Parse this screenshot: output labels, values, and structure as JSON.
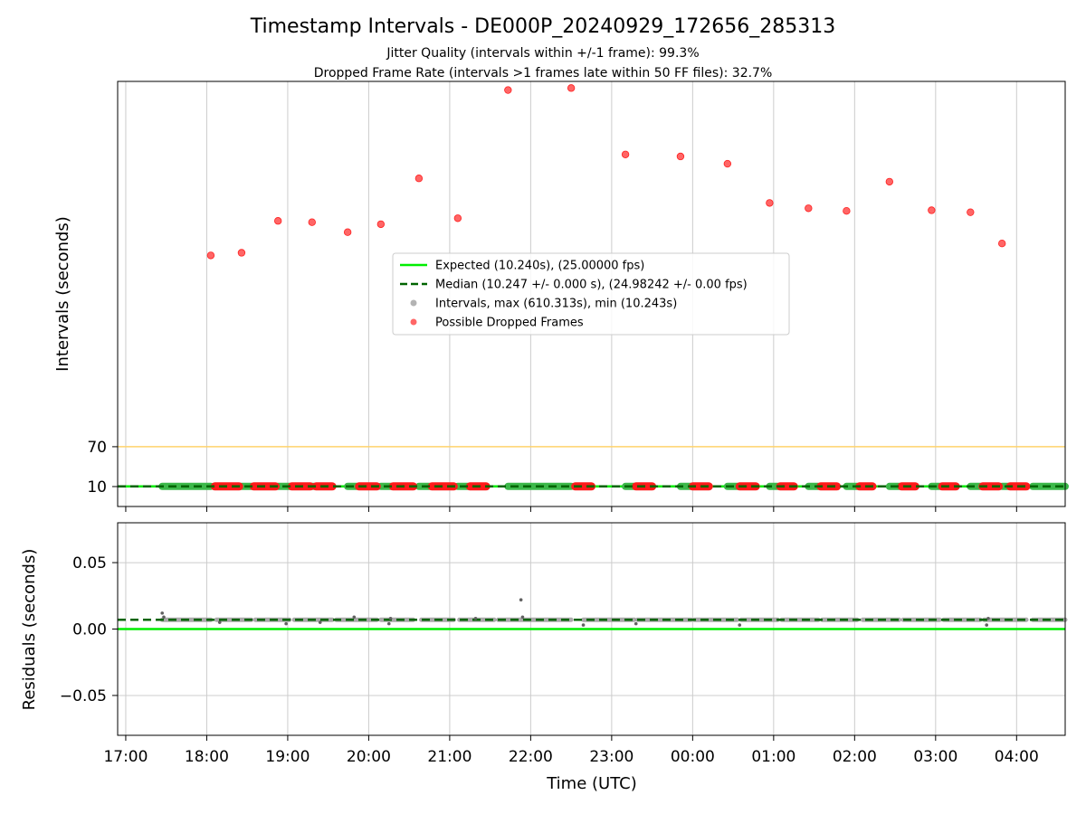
{
  "chart_data": {
    "type": "scatter",
    "title": "Timestamp Intervals - DE000P_20240929_172656_285313",
    "subtitle_lines": [
      "Jitter Quality (intervals within +/-1 frame): 99.3%",
      "Dropped Frame Rate (intervals >1 frames late within 50 FF files): 32.7%"
    ],
    "xlabel": "Time (UTC)",
    "x_ticks": [
      "17:00",
      "18:00",
      "19:00",
      "20:00",
      "21:00",
      "22:00",
      "23:00",
      "00:00",
      "01:00",
      "02:00",
      "03:00",
      "04:00"
    ],
    "x_range_hours": [
      -0.1,
      11.6
    ],
    "legend_position": "center",
    "grid": true,
    "colors": {
      "expected": "#00ee00",
      "median": "#006400",
      "intervals": "#808080",
      "dropped": "#ff0000",
      "threshold": "#ffd36b",
      "grid": "#cccccc"
    },
    "top": {
      "ylabel": "Intervals (seconds)",
      "y_ticks": [
        10,
        70
      ],
      "ylim": [
        -20,
        620
      ],
      "threshold_line": 70,
      "expected_value": 10.24,
      "median_value": 10.247,
      "legend": [
        {
          "kind": "line",
          "label": "Expected (10.240s), (25.00000 fps)"
        },
        {
          "kind": "dashed",
          "label": "Median (10.247 +/- 0.000 s), (24.98242 +/- 0.00 fps)"
        },
        {
          "kind": "dot-gray",
          "label": "Intervals, max (610.313s), min (10.243s)"
        },
        {
          "kind": "dot-red",
          "label": "Possible Dropped Frames"
        }
      ],
      "dropped_outliers": [
        {
          "t": 1.05,
          "v": 358
        },
        {
          "t": 1.43,
          "v": 362
        },
        {
          "t": 1.88,
          "v": 410
        },
        {
          "t": 2.3,
          "v": 408
        },
        {
          "t": 2.74,
          "v": 393
        },
        {
          "t": 3.15,
          "v": 405
        },
        {
          "t": 3.62,
          "v": 474
        },
        {
          "t": 4.1,
          "v": 414
        },
        {
          "t": 4.72,
          "v": 607
        },
        {
          "t": 5.5,
          "v": 610
        },
        {
          "t": 6.17,
          "v": 510
        },
        {
          "t": 6.85,
          "v": 507
        },
        {
          "t": 7.43,
          "v": 496
        },
        {
          "t": 7.95,
          "v": 437
        },
        {
          "t": 8.43,
          "v": 429
        },
        {
          "t": 8.9,
          "v": 425
        },
        {
          "t": 9.43,
          "v": 469
        },
        {
          "t": 9.95,
          "v": 426
        },
        {
          "t": 10.43,
          "v": 423
        },
        {
          "t": 10.82,
          "v": 376
        }
      ],
      "normal_segments": [
        [
          0.45,
          1.05
        ],
        [
          1.43,
          1.55
        ],
        [
          1.88,
          2.03
        ],
        [
          2.3,
          2.32
        ],
        [
          2.74,
          2.85
        ],
        [
          3.15,
          3.28
        ],
        [
          3.62,
          3.75
        ],
        [
          4.1,
          4.22
        ],
        [
          4.72,
          5.5
        ],
        [
          6.17,
          6.28
        ],
        [
          6.85,
          6.98
        ],
        [
          7.43,
          7.55
        ],
        [
          7.95,
          8.05
        ],
        [
          8.43,
          8.55
        ],
        [
          8.9,
          9.03
        ],
        [
          9.43,
          9.55
        ],
        [
          9.95,
          10.05
        ],
        [
          10.43,
          10.55
        ],
        [
          10.82,
          10.9
        ],
        [
          11.2,
          11.6
        ]
      ],
      "dropped_segments": [
        [
          1.1,
          1.4
        ],
        [
          1.58,
          1.85
        ],
        [
          2.05,
          2.28
        ],
        [
          2.35,
          2.55
        ],
        [
          2.88,
          3.1
        ],
        [
          3.3,
          3.55
        ],
        [
          3.78,
          4.05
        ],
        [
          4.25,
          4.45
        ],
        [
          5.55,
          5.75
        ],
        [
          6.3,
          6.5
        ],
        [
          7.0,
          7.2
        ],
        [
          7.58,
          7.78
        ],
        [
          8.08,
          8.25
        ],
        [
          8.58,
          8.78
        ],
        [
          9.06,
          9.22
        ],
        [
          9.58,
          9.75
        ],
        [
          10.08,
          10.25
        ],
        [
          10.58,
          10.78
        ],
        [
          10.92,
          11.12
        ]
      ]
    },
    "bottom": {
      "ylabel": "Residuals (seconds)",
      "y_ticks": [
        0.05,
        0.0,
        -0.05
      ],
      "y_tick_labels": [
        "0.05",
        "0.00",
        "−0.05"
      ],
      "ylim": [
        -0.08,
        0.08
      ],
      "expected_value": 0.0,
      "median_value": 0.007,
      "residual_segments": [
        [
          0.45,
          1.05
        ],
        [
          1.12,
          1.55
        ],
        [
          1.6,
          2.02
        ],
        [
          2.08,
          2.55
        ],
        [
          2.6,
          3.1
        ],
        [
          3.15,
          3.55
        ],
        [
          3.65,
          4.05
        ],
        [
          4.12,
          4.55
        ],
        [
          4.6,
          5.5
        ],
        [
          5.65,
          6.28
        ],
        [
          6.32,
          6.98
        ],
        [
          7.02,
          7.55
        ],
        [
          7.6,
          8.05
        ],
        [
          8.1,
          8.55
        ],
        [
          8.6,
          9.03
        ],
        [
          9.1,
          9.55
        ],
        [
          9.6,
          10.05
        ],
        [
          10.1,
          10.55
        ],
        [
          10.6,
          11.12
        ],
        [
          11.2,
          11.6
        ]
      ],
      "residual_outliers": [
        {
          "t": 0.45,
          "v": 0.012
        },
        {
          "t": 0.47,
          "v": 0.009
        },
        {
          "t": 1.16,
          "v": 0.005
        },
        {
          "t": 1.98,
          "v": 0.004
        },
        {
          "t": 2.4,
          "v": 0.005
        },
        {
          "t": 2.82,
          "v": 0.009
        },
        {
          "t": 3.25,
          "v": 0.004
        },
        {
          "t": 3.27,
          "v": 0.008
        },
        {
          "t": 4.32,
          "v": 0.008
        },
        {
          "t": 4.88,
          "v": 0.022
        },
        {
          "t": 4.9,
          "v": 0.009
        },
        {
          "t": 5.65,
          "v": 0.003
        },
        {
          "t": 6.3,
          "v": 0.004
        },
        {
          "t": 7.58,
          "v": 0.003
        },
        {
          "t": 10.63,
          "v": 0.003
        },
        {
          "t": 10.65,
          "v": 0.008
        }
      ]
    }
  }
}
